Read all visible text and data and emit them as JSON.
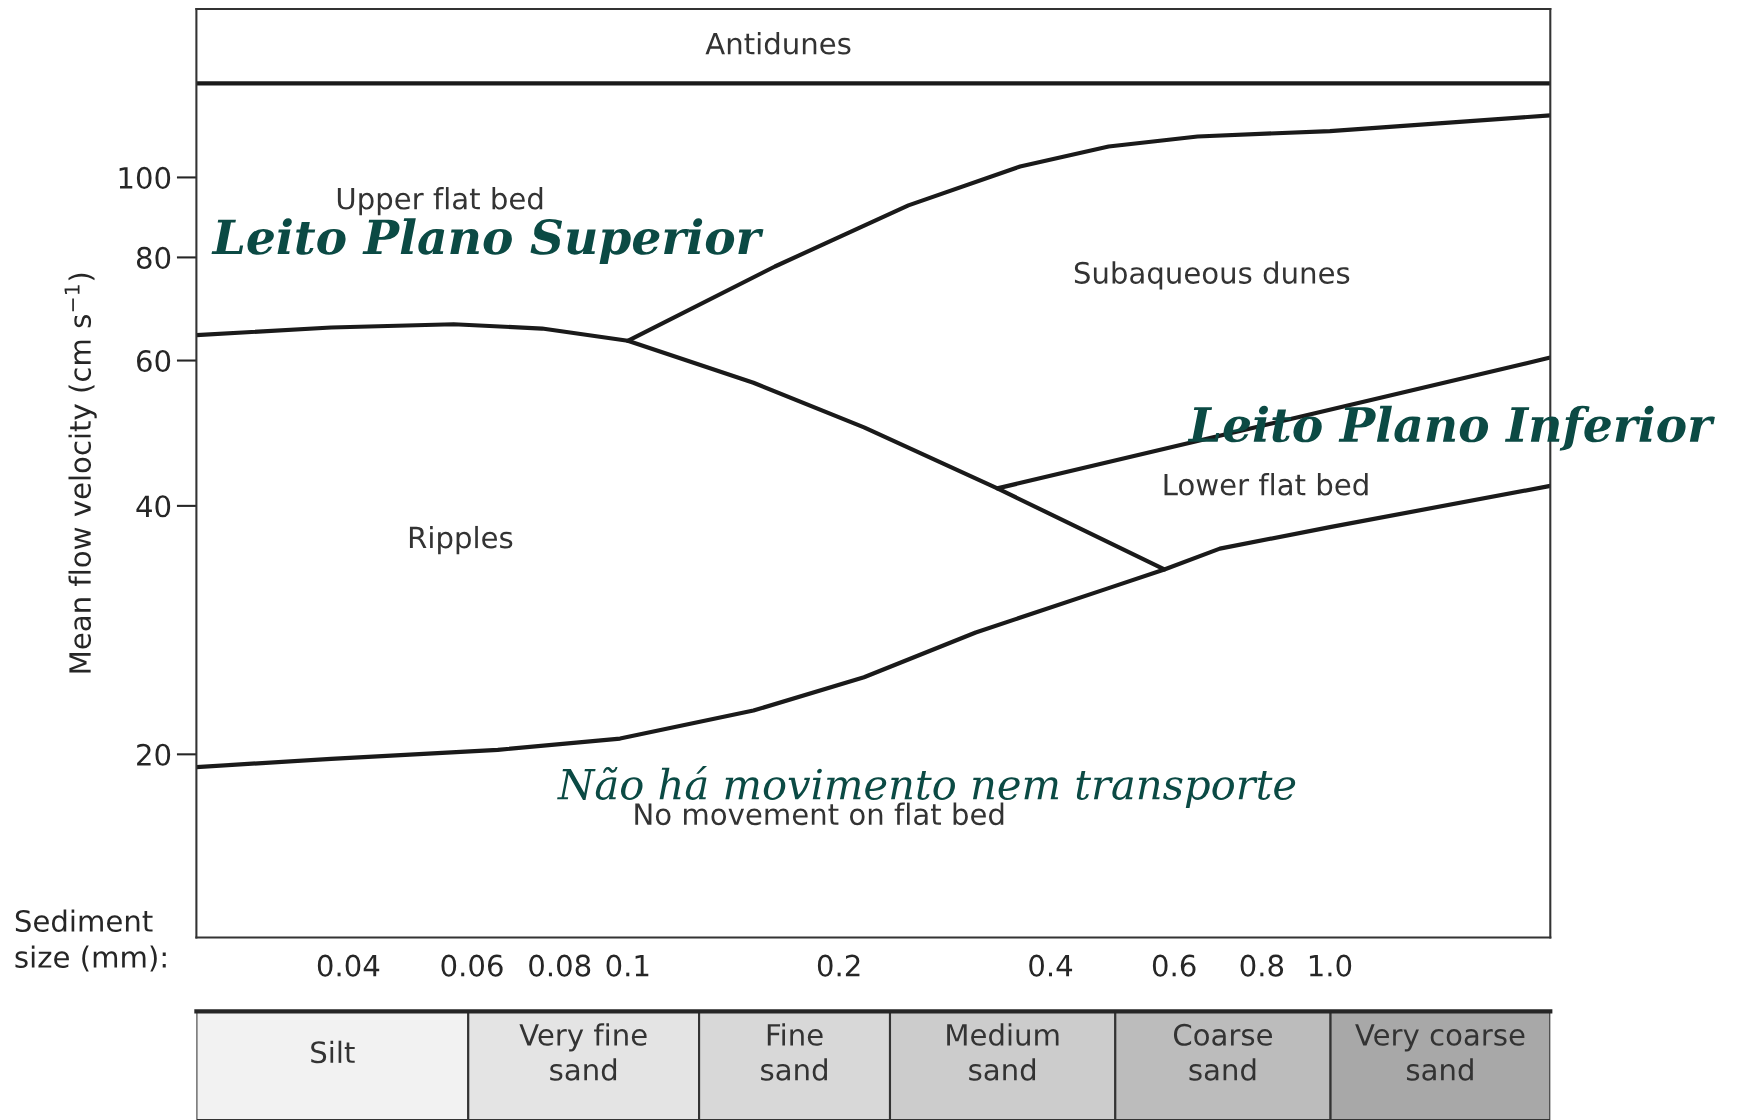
{
  "chart_data": [
    {
      "type": "line",
      "xlabel": "Sediment\nsize (mm):",
      "ylabel": "Mean flow velocity (cm s$^{−1}$)",
      "log": "xy",
      "xlim": [
        0.0243,
        2.06
      ],
      "ylim": [
        12,
        160
      ],
      "xticks": [
        0.04,
        0.06,
        0.08,
        0.1,
        0.2,
        0.4,
        0.6,
        0.8,
        {
          "value": 1.0,
          "label": "1.0"
        }
      ],
      "yticks": [
        20,
        40,
        60,
        80,
        100
      ],
      "grid": false,
      "legend": false,
      "marker": "none",
      "line_style": "solid",
      "series": [
        {
          "color": "#1a1a1a",
          "x": [
            0.0243,
            0.0378,
            0.0565,
            0.0755,
            0.1,
            0.151,
            0.217,
            0.336,
            0.581
          ],
          "values": [
            64.4,
            65.8,
            66.4,
            65.6,
            63.4,
            56.4,
            49.8,
            42.0,
            33.5
          ]
        },
        {
          "color": "#1a1a1a",
          "x": [
            0.1,
            0.162,
            0.251,
            0.362,
            0.484,
            0.648,
            1.0,
            2.06
          ],
          "values": [
            63.4,
            78.0,
            92.5,
            103.1,
            109.0,
            112.1,
            113.8,
            118.9
          ]
        },
        {
          "color": "#1a1a1a",
          "x": [
            0.336,
            2.06
          ],
          "values": [
            42.0,
            60.5
          ]
        },
        {
          "color": "#1a1a1a",
          "x": [
            0.0243,
            0.0378,
            0.0653,
            0.0975,
            0.151,
            0.217,
            0.313,
            0.484,
            0.581,
            0.697,
            1.0,
            2.06
          ],
          "values": [
            19.3,
            19.75,
            20.25,
            20.9,
            22.6,
            24.8,
            28.1,
            31.8,
            33.5,
            35.5,
            37.7,
            42.3
          ]
        }
      ],
      "ref_lines": [
        {
          "axis": "y",
          "value": 130,
          "color": "#1a1a1a"
        }
      ],
      "annotations": [
        "Antidunes",
        "Upper flat bed",
        "Subaqueous dunes",
        "Ripples",
        "Lower flat bed",
        "No movement on flat bed",
        "Leito Plano Superior",
        "Leito Plano Inferior",
        "Não há movimento nem transporte"
      ]
    },
    {
      "type": "other",
      "annotations": [
        "Silt",
        "Very fine\nsand",
        "Fine\nsand",
        "Medium\nsand",
        "Coarse\nsand",
        "Very coarse\nsand"
      ]
    }
  ]
}
